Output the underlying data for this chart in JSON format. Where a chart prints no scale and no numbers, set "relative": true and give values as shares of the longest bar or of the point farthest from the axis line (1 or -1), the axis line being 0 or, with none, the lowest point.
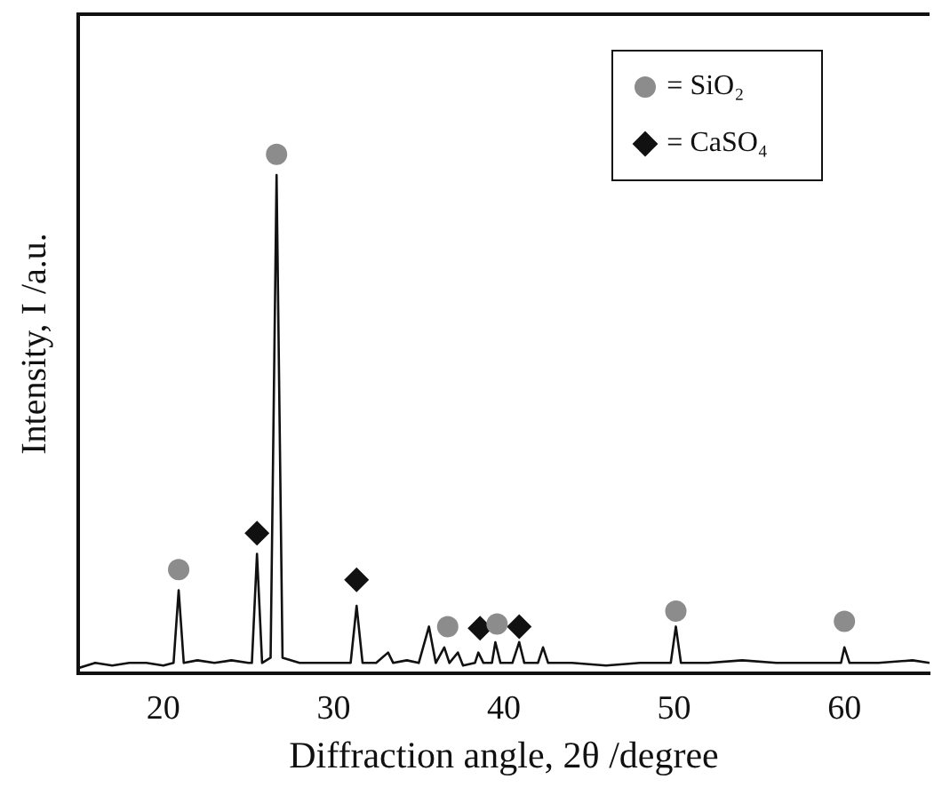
{
  "chart_data": {
    "type": "line",
    "relative": true,
    "xlabel": "Diffraction angle, 2θ /degree",
    "ylabel": "Intensity, I /a.u.",
    "xlim": [
      15,
      65
    ],
    "xticks": [
      20,
      30,
      40,
      50,
      60
    ],
    "grid": false,
    "legend": "top right",
    "marker": "none",
    "series": [
      {
        "type": "line",
        "color": "#111111",
        "x": [
          15,
          16,
          17,
          18,
          19,
          20,
          20.6,
          20.9,
          21.2,
          22,
          23,
          24,
          25,
          25.2,
          25.5,
          25.8,
          26.3,
          26.65,
          27,
          28,
          29,
          30,
          31,
          31.35,
          31.7,
          32.5,
          33.2,
          33.5,
          34.3,
          35,
          35.6,
          36,
          36.5,
          36.8,
          37.3,
          37.6,
          38.3,
          38.5,
          38.8,
          39.3,
          39.5,
          39.8,
          40.5,
          40.9,
          41.2,
          42,
          42.3,
          42.6,
          44,
          46,
          48,
          49.8,
          50.1,
          50.4,
          52,
          54,
          56,
          58,
          59.8,
          60,
          60.3,
          62,
          64,
          65
        ],
        "values": [
          0.01,
          0.02,
          0.015,
          0.02,
          0.02,
          0.015,
          0.02,
          0.16,
          0.02,
          0.025,
          0.02,
          0.025,
          0.02,
          0.02,
          0.23,
          0.02,
          0.03,
          0.96,
          0.03,
          0.02,
          0.02,
          0.02,
          0.02,
          0.13,
          0.02,
          0.02,
          0.04,
          0.02,
          0.025,
          0.02,
          0.09,
          0.02,
          0.05,
          0.02,
          0.04,
          0.015,
          0.02,
          0.04,
          0.02,
          0.02,
          0.06,
          0.02,
          0.02,
          0.06,
          0.02,
          0.02,
          0.05,
          0.02,
          0.02,
          0.015,
          0.02,
          0.02,
          0.09,
          0.02,
          0.02,
          0.025,
          0.02,
          0.02,
          0.02,
          0.05,
          0.02,
          0.02,
          0.025,
          0.02
        ]
      },
      {
        "type": "scatter",
        "name": "= SiO₂",
        "color": "#8c8c8c",
        "marker": "circle",
        "x": [
          20.9,
          26.65,
          36.7,
          39.6,
          50.1,
          60.0
        ],
        "values": [
          0.2,
          1,
          0.09,
          0.095,
          0.12,
          0.1
        ]
      },
      {
        "type": "scatter",
        "name": "= CaSO₄",
        "color": "#111111",
        "marker": "diamond",
        "x": [
          25.5,
          31.35,
          38.6,
          40.9
        ],
        "values": [
          0.27,
          0.18,
          0.087,
          0.09
        ]
      }
    ]
  }
}
